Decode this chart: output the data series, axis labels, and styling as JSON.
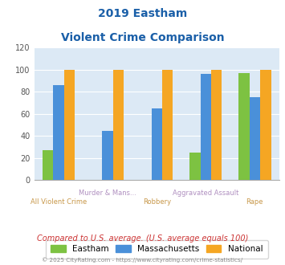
{
  "title_line1": "2019 Eastham",
  "title_line2": "Violent Crime Comparison",
  "categories": [
    "All Violent Crime",
    "Murder & Mans...",
    "Robbery",
    "Aggravated Assault",
    "Rape"
  ],
  "eastham": [
    27,
    0,
    0,
    25,
    97
  ],
  "massachusetts": [
    86,
    45,
    65,
    96,
    75
  ],
  "national": [
    100,
    100,
    100,
    100,
    100
  ],
  "color_eastham": "#7dc242",
  "color_massachusetts": "#4a90d9",
  "color_national": "#f5a623",
  "ylim": [
    0,
    120
  ],
  "yticks": [
    0,
    20,
    40,
    60,
    80,
    100,
    120
  ],
  "bg_color": "#dce9f5",
  "title_color": "#1a5fa8",
  "xlabel_color_upper": "#b090c0",
  "xlabel_color_lower": "#c8984a",
  "footer_text": "Compared to U.S. average. (U.S. average equals 100)",
  "footer_color": "#cc3333",
  "copyright_text": "© 2025 CityRating.com - https://www.cityrating.com/crime-statistics/",
  "copyright_color": "#888888",
  "legend_labels": [
    "Eastham",
    "Massachusetts",
    "National"
  ],
  "bar_width": 0.22
}
